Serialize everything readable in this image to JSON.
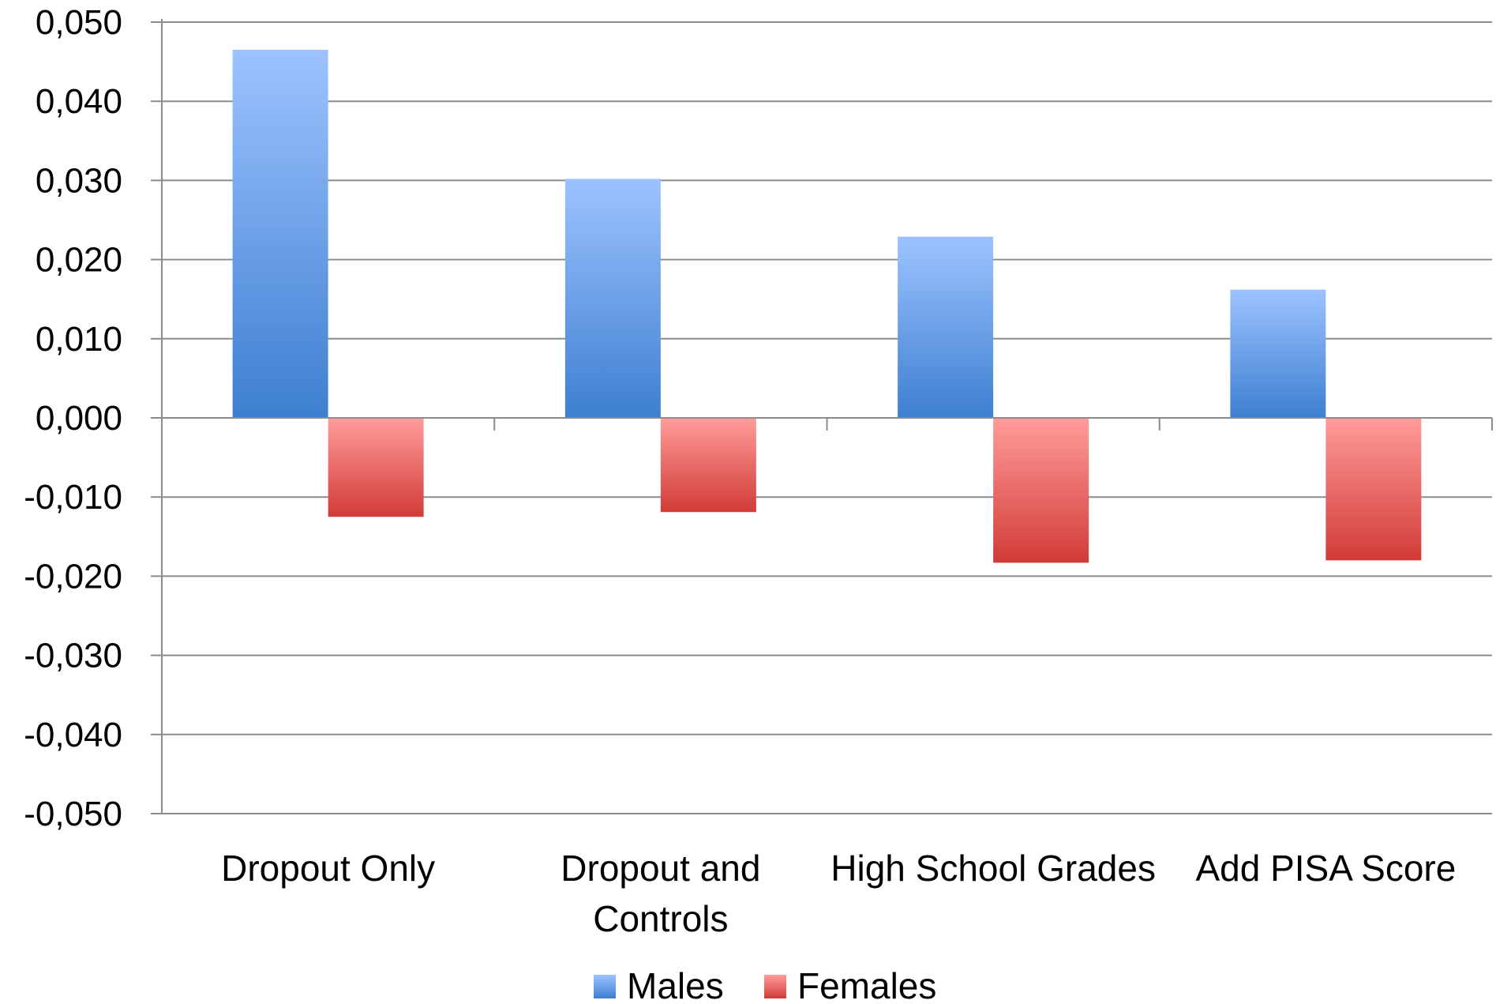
{
  "chart_data": {
    "type": "bar",
    "categories": [
      [
        "Dropout Only"
      ],
      [
        "Dropout and",
        "Controls"
      ],
      [
        "High School Grades"
      ],
      [
        "Add PISA Score"
      ]
    ],
    "series": [
      {
        "name": "Males",
        "values": [
          0.0465,
          0.0302,
          0.0229,
          0.0162
        ]
      },
      {
        "name": "Females",
        "values": [
          -0.0125,
          -0.0119,
          -0.0183,
          -0.018
        ]
      }
    ],
    "yticks": [
      "0,050",
      "0,040",
      "0,030",
      "0,020",
      "0,010",
      "0,000",
      "-0,010",
      "-0,020",
      "-0,030",
      "-0,040",
      "-0,050"
    ],
    "ylim": [
      -0.05,
      0.05
    ],
    "grid": true,
    "legend": "bottom",
    "colors": {
      "males_top": "#9dc3ff",
      "males_bottom": "#3d7fd0",
      "females_top": "#ff9c9a",
      "females_bottom": "#d23b37",
      "grid": "#8c8c8c"
    }
  }
}
